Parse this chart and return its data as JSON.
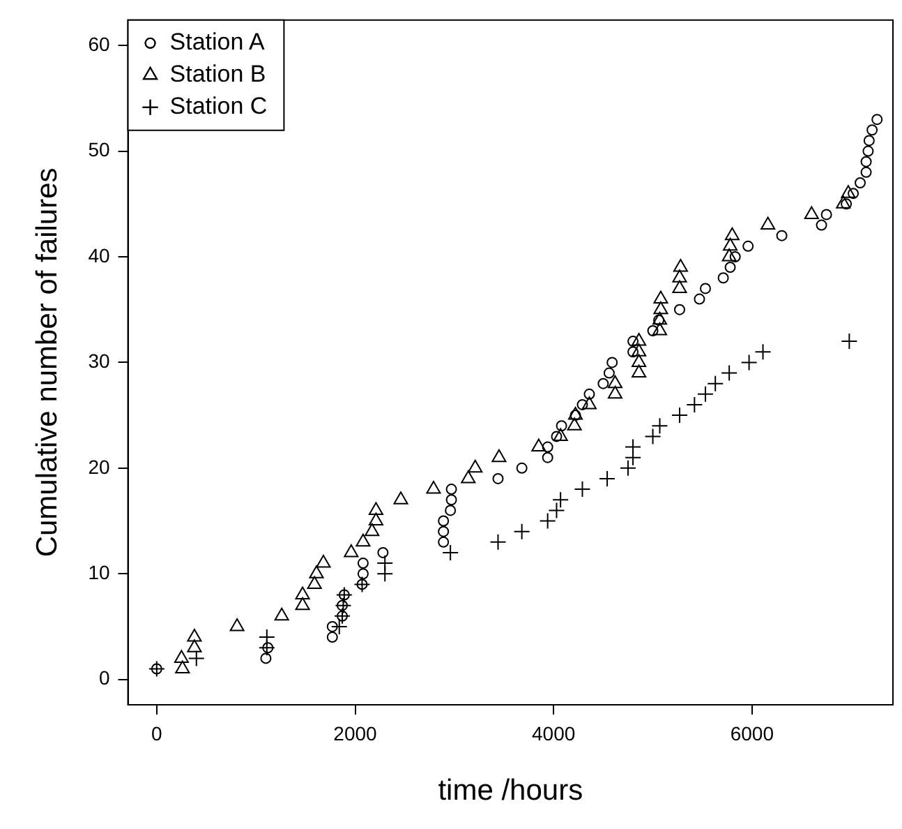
{
  "chart_data": {
    "type": "scatter",
    "xlabel": "time /hours",
    "ylabel": "Cumulative number of failures",
    "xlim": [
      -290,
      7420
    ],
    "ylim": [
      -2.4,
      62.4
    ],
    "xticks": [
      0,
      2000,
      4000,
      6000
    ],
    "yticks": [
      0,
      10,
      20,
      30,
      40,
      50,
      60
    ],
    "grid": false,
    "legend": "top left",
    "series": [
      {
        "name": "Station A",
        "color": "#000000",
        "marker": "circle",
        "x": [
          0,
          1100,
          1120,
          1770,
          1770,
          1870,
          1870,
          1890,
          2070,
          2080,
          2080,
          2280,
          2890,
          2890,
          2890,
          2960,
          2970,
          2970,
          3440,
          3680,
          3940,
          3940,
          4030,
          4080,
          4220,
          4290,
          4360,
          4500,
          4560,
          4590,
          4800,
          4800,
          5000,
          5060,
          5270,
          5470,
          5530,
          5710,
          5780,
          5830,
          5960,
          6300,
          6700,
          6750,
          6950,
          7020,
          7090,
          7150,
          7150,
          7170,
          7180,
          7210,
          7260
        ],
        "values": [
          1,
          2,
          3,
          4,
          5,
          6,
          7,
          8,
          9,
          10,
          11,
          12,
          13,
          14,
          15,
          16,
          17,
          18,
          19,
          20,
          21,
          22,
          23,
          24,
          25,
          26,
          27,
          28,
          29,
          30,
          31,
          32,
          33,
          34,
          35,
          36,
          37,
          38,
          39,
          40,
          41,
          42,
          43,
          44,
          45,
          46,
          47,
          48,
          49,
          50,
          51,
          52,
          53
        ]
      },
      {
        "name": "Station B",
        "color": "#000000",
        "marker": "triangle",
        "x": [
          260,
          250,
          380,
          380,
          810,
          1260,
          1470,
          1470,
          1590,
          1610,
          1680,
          1960,
          2080,
          2170,
          2210,
          2210,
          2460,
          2790,
          3140,
          3210,
          3450,
          3850,
          4070,
          4210,
          4220,
          4360,
          4620,
          4620,
          4860,
          4860,
          4860,
          4860,
          5070,
          5070,
          5080,
          5080,
          5270,
          5270,
          5280,
          5770,
          5780,
          5800,
          6160,
          6600,
          6920,
          6970
        ],
        "values": [
          1,
          2,
          3,
          4,
          5,
          6,
          7,
          8,
          9,
          10,
          11,
          12,
          13,
          14,
          15,
          16,
          17,
          18,
          19,
          20,
          21,
          22,
          23,
          24,
          25,
          26,
          27,
          28,
          29,
          30,
          31,
          32,
          33,
          34,
          35,
          36,
          37,
          38,
          39,
          40,
          41,
          42,
          43,
          44,
          45,
          46
        ]
      },
      {
        "name": "Station C",
        "color": "#000000",
        "marker": "cross",
        "x": [
          0,
          400,
          1110,
          1110,
          1840,
          1870,
          1880,
          1890,
          2070,
          2300,
          2300,
          2960,
          3440,
          3680,
          3940,
          4030,
          4070,
          4290,
          4540,
          4750,
          4800,
          4800,
          5000,
          5070,
          5270,
          5420,
          5530,
          5630,
          5770,
          5970,
          6110,
          6980
        ],
        "values": [
          1,
          2,
          3,
          4,
          5,
          6,
          7,
          8,
          9,
          10,
          11,
          12,
          13,
          14,
          15,
          16,
          17,
          18,
          19,
          20,
          21,
          22,
          23,
          24,
          25,
          26,
          27,
          28,
          29,
          30,
          31,
          32
        ]
      }
    ]
  }
}
